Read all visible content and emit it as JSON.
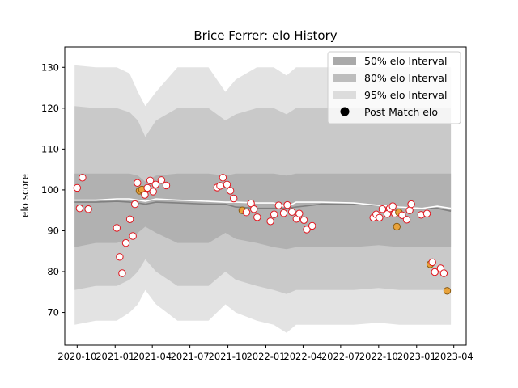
{
  "chart_data": {
    "type": "area",
    "title": "Brice Ferrer: elo History",
    "xlabel": "",
    "ylabel": "elo score",
    "xlim": [
      "2020-09-01",
      "2023-05-01"
    ],
    "ylim": [
      62,
      135
    ],
    "x_ticks": [
      "2020-10",
      "2021-01",
      "2021-04",
      "2021-07",
      "2021-10",
      "2022-01",
      "2022-04",
      "2022-07",
      "2022-10",
      "2023-01",
      "2023-04"
    ],
    "y_ticks": [
      70,
      80,
      90,
      100,
      110,
      120,
      130
    ],
    "grid": false,
    "legend_position": "top-right",
    "legend": [
      {
        "label": "50% elo Interval",
        "kind": "band",
        "color": "#a9a9a9"
      },
      {
        "label": "80% elo Interval",
        "kind": "band",
        "color": "#bdbdbd"
      },
      {
        "label": "95% elo Interval",
        "kind": "band",
        "color": "#dcdcdc"
      },
      {
        "label": "Post Match elo",
        "kind": "marker",
        "color": "#000000"
      }
    ],
    "colors": {
      "band95": "#e3e3e3",
      "band80": "#c9c9c9",
      "band50": "#b1b1b1",
      "mean_line": "#808080",
      "median_line": "#ffffff",
      "win_face": "#ffffff",
      "loss_face": "#e8a33c",
      "marker_edge": "#e0161e"
    },
    "bands": [
      {
        "date": "2020-09-25",
        "lo95": 67,
        "lo80": 75.5,
        "lo50": 86,
        "hi50": 104,
        "hi80": 120.5,
        "hi95": 130.5,
        "mean": 97,
        "median": 97.5
      },
      {
        "date": "2020-11-15",
        "lo95": 68,
        "lo80": 76.5,
        "lo50": 87,
        "hi50": 104,
        "hi80": 120,
        "hi95": 130,
        "mean": 97,
        "median": 97.5
      },
      {
        "date": "2021-01-05",
        "lo95": 68,
        "lo80": 76.5,
        "lo50": 87,
        "hi50": 104,
        "hi80": 120,
        "hi95": 130,
        "mean": 97.2,
        "median": 97.8
      },
      {
        "date": "2021-02-05",
        "lo95": 70,
        "lo80": 78,
        "lo50": 88,
        "hi50": 104,
        "hi80": 119,
        "hi95": 128.5,
        "mean": 97,
        "median": 97.8
      },
      {
        "date": "2021-02-25",
        "lo95": 72,
        "lo80": 80,
        "lo50": 89.5,
        "hi50": 103.5,
        "hi80": 117,
        "hi95": 124,
        "mean": 96.8,
        "median": 97.5
      },
      {
        "date": "2021-03-15",
        "lo95": 75.5,
        "lo80": 83,
        "lo50": 91,
        "hi50": 102,
        "hi80": 113,
        "hi95": 120.5,
        "mean": 96.5,
        "median": 97.2
      },
      {
        "date": "2021-04-10",
        "lo95": 72,
        "lo80": 80,
        "lo50": 89.5,
        "hi50": 103.5,
        "hi80": 117,
        "hi95": 124,
        "mean": 97,
        "median": 97.8
      },
      {
        "date": "2021-06-01",
        "lo95": 68,
        "lo80": 76.5,
        "lo50": 87,
        "hi50": 104,
        "hi80": 120,
        "hi95": 130,
        "mean": 96.8,
        "median": 97.5
      },
      {
        "date": "2021-08-15",
        "lo95": 68,
        "lo80": 76.5,
        "lo50": 87,
        "hi50": 104,
        "hi80": 120,
        "hi95": 130,
        "mean": 96.5,
        "median": 97.2
      },
      {
        "date": "2021-09-25",
        "lo95": 72,
        "lo80": 80,
        "lo50": 89.5,
        "hi50": 103.5,
        "hi80": 117,
        "hi95": 124,
        "mean": 96.5,
        "median": 97
      },
      {
        "date": "2021-10-20",
        "lo95": 70,
        "lo80": 78,
        "lo50": 88,
        "hi50": 104,
        "hi80": 118.5,
        "hi95": 127,
        "mean": 95.8,
        "median": 97
      },
      {
        "date": "2021-12-10",
        "lo95": 68,
        "lo80": 76.5,
        "lo50": 87,
        "hi50": 104,
        "hi80": 120,
        "hi95": 130,
        "mean": 95.5,
        "median": 96.8
      },
      {
        "date": "2022-01-20",
        "lo95": 67,
        "lo80": 75.5,
        "lo50": 86,
        "hi50": 104,
        "hi80": 120,
        "hi95": 130,
        "mean": 95.5,
        "median": 96.8
      },
      {
        "date": "2022-02-20",
        "lo95": 65,
        "lo80": 74.5,
        "lo50": 85.5,
        "hi50": 103.5,
        "hi80": 118.5,
        "hi95": 128,
        "mean": 95.5,
        "median": 95.8
      },
      {
        "date": "2022-03-15",
        "lo95": 67,
        "lo80": 75.5,
        "lo50": 86,
        "hi50": 104,
        "hi80": 120,
        "hi95": 130,
        "mean": 95.8,
        "median": 97
      },
      {
        "date": "2022-05-15",
        "lo95": 67,
        "lo80": 75.5,
        "lo50": 86,
        "hi50": 104,
        "hi80": 120,
        "hi95": 130,
        "mean": 96.5,
        "median": 97
      },
      {
        "date": "2022-08-01",
        "lo95": 67,
        "lo80": 75.5,
        "lo50": 86,
        "hi50": 104,
        "hi80": 120,
        "hi95": 130,
        "mean": 96.5,
        "median": 96.8
      },
      {
        "date": "2022-10-01",
        "lo95": 67.5,
        "lo80": 76,
        "lo50": 86.5,
        "hi50": 104,
        "hi80": 120,
        "hi95": 130,
        "mean": 96.2,
        "median": 96.2
      },
      {
        "date": "2022-11-20",
        "lo95": 67,
        "lo80": 75.5,
        "lo50": 86,
        "hi50": 104,
        "hi80": 120,
        "hi95": 130,
        "mean": 95.8,
        "median": 95.8
      },
      {
        "date": "2023-01-15",
        "lo95": 67,
        "lo80": 75.5,
        "lo50": 86,
        "hi50": 104,
        "hi80": 120,
        "hi95": 130,
        "mean": 95.5,
        "median": 95.5
      },
      {
        "date": "2023-02-20",
        "lo95": 67,
        "lo80": 75.5,
        "lo50": 86,
        "hi50": 104,
        "hi80": 120,
        "hi95": 130,
        "mean": 95.5,
        "median": 96
      },
      {
        "date": "2023-03-25",
        "lo95": 67,
        "lo80": 75.5,
        "lo50": 86,
        "hi50": 104,
        "hi80": 120,
        "hi95": 130,
        "mean": 94.8,
        "median": 95.5
      }
    ],
    "points": [
      {
        "date": "2020-10-01",
        "elo": 100.5,
        "result": "win"
      },
      {
        "date": "2020-10-07",
        "elo": 95.5,
        "result": "win"
      },
      {
        "date": "2020-10-14",
        "elo": 103,
        "result": "win"
      },
      {
        "date": "2020-10-28",
        "elo": 95.3,
        "result": "win"
      },
      {
        "date": "2021-01-05",
        "elo": 90.7,
        "result": "win"
      },
      {
        "date": "2021-01-12",
        "elo": 83.6,
        "result": "win"
      },
      {
        "date": "2021-01-18",
        "elo": 79.6,
        "result": "win"
      },
      {
        "date": "2021-01-27",
        "elo": 87,
        "result": "win"
      },
      {
        "date": "2021-02-06",
        "elo": 92.8,
        "result": "win"
      },
      {
        "date": "2021-02-13",
        "elo": 88.7,
        "result": "win"
      },
      {
        "date": "2021-02-18",
        "elo": 96.5,
        "result": "win"
      },
      {
        "date": "2021-02-24",
        "elo": 101.7,
        "result": "win"
      },
      {
        "date": "2021-03-01",
        "elo": 99.8,
        "result": "loss"
      },
      {
        "date": "2021-03-07",
        "elo": 100.1,
        "result": "loss"
      },
      {
        "date": "2021-03-14",
        "elo": 98.8,
        "result": "win"
      },
      {
        "date": "2021-03-20",
        "elo": 100.5,
        "result": "win"
      },
      {
        "date": "2021-03-27",
        "elo": 102.3,
        "result": "win"
      },
      {
        "date": "2021-04-03",
        "elo": 99.6,
        "result": "win"
      },
      {
        "date": "2021-04-09",
        "elo": 101.3,
        "result": "win"
      },
      {
        "date": "2021-04-23",
        "elo": 102.4,
        "result": "win"
      },
      {
        "date": "2021-05-05",
        "elo": 101.1,
        "result": "win"
      },
      {
        "date": "2021-09-05",
        "elo": 100.6,
        "result": "win"
      },
      {
        "date": "2021-09-12",
        "elo": 101,
        "result": "win"
      },
      {
        "date": "2021-09-19",
        "elo": 103,
        "result": "win"
      },
      {
        "date": "2021-09-29",
        "elo": 101.3,
        "result": "win"
      },
      {
        "date": "2021-10-07",
        "elo": 99.8,
        "result": "win"
      },
      {
        "date": "2021-10-15",
        "elo": 97.9,
        "result": "win"
      },
      {
        "date": "2021-11-05",
        "elo": 95,
        "result": "loss"
      },
      {
        "date": "2021-11-15",
        "elo": 94.5,
        "result": "win"
      },
      {
        "date": "2021-11-26",
        "elo": 96.7,
        "result": "win"
      },
      {
        "date": "2021-12-03",
        "elo": 95.3,
        "result": "win"
      },
      {
        "date": "2021-12-11",
        "elo": 93.3,
        "result": "win"
      },
      {
        "date": "2022-01-12",
        "elo": 92.3,
        "result": "win"
      },
      {
        "date": "2022-01-21",
        "elo": 94,
        "result": "win"
      },
      {
        "date": "2022-02-01",
        "elo": 96.2,
        "result": "win"
      },
      {
        "date": "2022-02-13",
        "elo": 94.3,
        "result": "win"
      },
      {
        "date": "2022-02-22",
        "elo": 96.3,
        "result": "win"
      },
      {
        "date": "2022-03-05",
        "elo": 94.6,
        "result": "win"
      },
      {
        "date": "2022-03-16",
        "elo": 92.9,
        "result": "win"
      },
      {
        "date": "2022-03-23",
        "elo": 94.2,
        "result": "win"
      },
      {
        "date": "2022-04-03",
        "elo": 92.6,
        "result": "win"
      },
      {
        "date": "2022-04-10",
        "elo": 90.3,
        "result": "win"
      },
      {
        "date": "2022-04-23",
        "elo": 91.2,
        "result": "win"
      },
      {
        "date": "2022-09-18",
        "elo": 93.2,
        "result": "win"
      },
      {
        "date": "2022-09-25",
        "elo": 94,
        "result": "win"
      },
      {
        "date": "2022-10-03",
        "elo": 93.2,
        "result": "win"
      },
      {
        "date": "2022-10-10",
        "elo": 95.3,
        "result": "win"
      },
      {
        "date": "2022-10-22",
        "elo": 94.1,
        "result": "win"
      },
      {
        "date": "2022-10-28",
        "elo": 95.5,
        "result": "win"
      },
      {
        "date": "2022-11-04",
        "elo": 96,
        "result": "win"
      },
      {
        "date": "2022-11-09",
        "elo": 94.2,
        "result": "win"
      },
      {
        "date": "2022-11-14",
        "elo": 91,
        "result": "loss"
      },
      {
        "date": "2022-11-19",
        "elo": 94.5,
        "result": "loss"
      },
      {
        "date": "2022-11-27",
        "elo": 93.8,
        "result": "win"
      },
      {
        "date": "2022-12-08",
        "elo": 92.7,
        "result": "win"
      },
      {
        "date": "2022-12-15",
        "elo": 95,
        "result": "win"
      },
      {
        "date": "2022-12-19",
        "elo": 96.5,
        "result": "win"
      },
      {
        "date": "2023-01-12",
        "elo": 93.9,
        "result": "win"
      },
      {
        "date": "2023-01-26",
        "elo": 94.2,
        "result": "win"
      },
      {
        "date": "2023-02-03",
        "elo": 81.8,
        "result": "loss"
      },
      {
        "date": "2023-02-08",
        "elo": 82.3,
        "result": "win"
      },
      {
        "date": "2023-02-14",
        "elo": 79.9,
        "result": "win"
      },
      {
        "date": "2023-02-28",
        "elo": 80.8,
        "result": "win"
      },
      {
        "date": "2023-03-08",
        "elo": 79.6,
        "result": "win"
      },
      {
        "date": "2023-03-16",
        "elo": 75.3,
        "result": "loss"
      }
    ]
  }
}
